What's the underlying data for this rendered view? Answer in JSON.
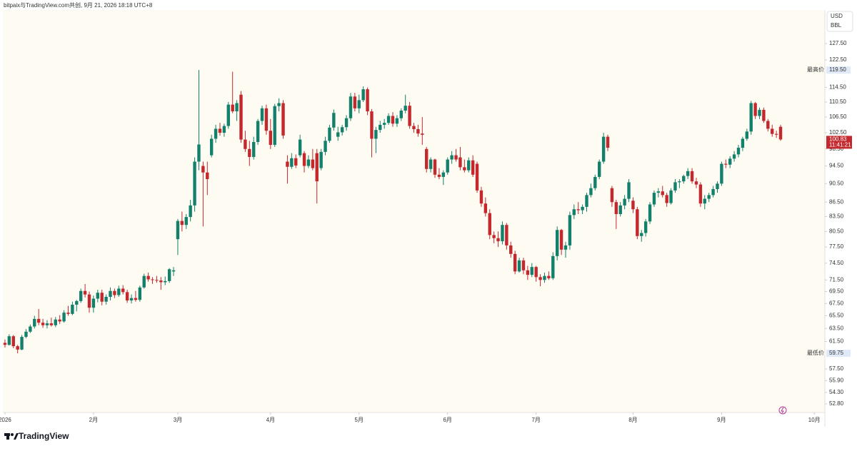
{
  "header": {
    "text": "bitpaix与TradingView.com共创, 9月 21, 2026 18:18 UTC+8"
  },
  "chart_data": {
    "type": "candlestick",
    "unit": "USD",
    "scale_label": "BBL",
    "log_scale": true,
    "up_color": "#13806c",
    "down_color": "#c4282d",
    "ylim": [
      51.7,
      138.4
    ],
    "yticks": [
      {
        "value": 127.5,
        "label": "127.50"
      },
      {
        "value": 122.5,
        "label": "122.50"
      },
      {
        "value": 114.5,
        "label": "114.50"
      },
      {
        "value": 110.5,
        "label": "110.50"
      },
      {
        "value": 106.5,
        "label": "106.50"
      },
      {
        "value": 102.5,
        "label": "102.50"
      },
      {
        "value": 98.5,
        "label": "98.50"
      },
      {
        "value": 94.5,
        "label": "94.50"
      },
      {
        "value": 90.5,
        "label": "90.50"
      },
      {
        "value": 86.5,
        "label": "86.50"
      },
      {
        "value": 83.5,
        "label": "83.50"
      },
      {
        "value": 80.5,
        "label": "80.50"
      },
      {
        "value": 77.5,
        "label": "77.50"
      },
      {
        "value": 74.5,
        "label": "74.50"
      },
      {
        "value": 71.5,
        "label": "71.50"
      },
      {
        "value": 69.5,
        "label": "69.50"
      },
      {
        "value": 67.5,
        "label": "67.50"
      },
      {
        "value": 65.5,
        "label": "65.50"
      },
      {
        "value": 63.5,
        "label": "63.50"
      },
      {
        "value": 61.5,
        "label": "61.50"
      },
      {
        "value": 57.5,
        "label": "57.50"
      },
      {
        "value": 55.9,
        "label": "55.90"
      },
      {
        "value": 54.3,
        "label": "54.30"
      },
      {
        "value": 52.8,
        "label": "52.80"
      }
    ],
    "xlim": [
      -0.5,
      194.5
    ],
    "xticks": [
      {
        "value": 0,
        "label": "2026"
      },
      {
        "value": 21,
        "label": "2月"
      },
      {
        "value": 41,
        "label": "3月"
      },
      {
        "value": 63,
        "label": "4月"
      },
      {
        "value": 84,
        "label": "5月"
      },
      {
        "value": 105,
        "label": "6月"
      },
      {
        "value": 126,
        "label": "7月"
      },
      {
        "value": 149,
        "label": "8月"
      },
      {
        "value": 170,
        "label": "9月"
      },
      {
        "value": 192,
        "label": "10月"
      }
    ],
    "high_marker": {
      "label": "最高价",
      "value": 119.5,
      "value_label": "119.50"
    },
    "low_marker": {
      "label": "最低价",
      "value": 59.75
    },
    "last_price": {
      "value": 100.83,
      "countdown": "11:41:21"
    },
    "ohlc": [
      [
        61.3,
        61.8,
        60.6,
        61.0
      ],
      [
        61.0,
        62.6,
        60.9,
        62.3
      ],
      [
        62.3,
        62.5,
        60.5,
        60.8
      ],
      [
        60.8,
        61.0,
        59.75,
        60.3
      ],
      [
        60.3,
        62.5,
        60.2,
        62.2
      ],
      [
        62.2,
        63.4,
        62.0,
        63.0
      ],
      [
        63.0,
        64.1,
        62.8,
        63.8
      ],
      [
        63.8,
        65.5,
        63.5,
        65.0
      ],
      [
        65.0,
        66.6,
        64.0,
        64.4
      ],
      [
        64.4,
        65.0,
        63.6,
        64.0
      ],
      [
        64.0,
        64.8,
        63.5,
        64.3
      ],
      [
        64.3,
        65.2,
        63.8,
        64.0
      ],
      [
        64.0,
        65.3,
        63.7,
        64.9
      ],
      [
        64.9,
        65.6,
        64.2,
        64.6
      ],
      [
        64.6,
        66.4,
        64.4,
        66.0
      ],
      [
        66.0,
        67.1,
        65.5,
        65.8
      ],
      [
        65.8,
        67.8,
        65.6,
        67.3
      ],
      [
        67.3,
        68.1,
        66.2,
        67.9
      ],
      [
        67.9,
        70.0,
        67.6,
        69.6
      ],
      [
        69.6,
        70.8,
        68.5,
        69.0
      ],
      [
        69.0,
        69.5,
        66.0,
        66.8
      ],
      [
        66.8,
        68.8,
        66.0,
        68.3
      ],
      [
        68.3,
        69.8,
        67.7,
        69.3
      ],
      [
        69.3,
        69.8,
        67.2,
        67.8
      ],
      [
        67.8,
        69.0,
        67.3,
        68.6
      ],
      [
        68.6,
        70.2,
        68.0,
        69.6
      ],
      [
        69.6,
        70.0,
        68.4,
        68.9
      ],
      [
        68.9,
        70.5,
        68.6,
        70.0
      ],
      [
        70.0,
        70.6,
        69.0,
        69.4
      ],
      [
        69.4,
        69.8,
        67.6,
        68.0
      ],
      [
        68.0,
        69.0,
        67.5,
        68.4
      ],
      [
        68.4,
        69.6,
        67.8,
        68.1
      ],
      [
        68.1,
        70.5,
        67.8,
        70.2
      ],
      [
        70.2,
        72.6,
        70.0,
        72.2
      ],
      [
        72.2,
        72.8,
        71.2,
        71.6
      ],
      [
        71.6,
        72.0,
        70.8,
        71.5
      ],
      [
        71.5,
        72.2,
        71.0,
        71.4
      ],
      [
        71.4,
        72.0,
        69.8,
        71.1
      ],
      [
        71.1,
        72.1,
        70.6,
        71.3
      ],
      [
        71.3,
        73.6,
        71.0,
        73.4
      ],
      [
        73.0,
        73.8,
        72.2,
        73.2
      ],
      [
        79.0,
        83.0,
        76.0,
        82.6
      ],
      [
        82.6,
        84.5,
        80.5,
        81.8
      ],
      [
        81.8,
        84.0,
        81.0,
        83.4
      ],
      [
        83.4,
        87.0,
        82.5,
        85.8
      ],
      [
        85.8,
        96.5,
        84.5,
        95.5
      ],
      [
        95.5,
        119.5,
        93.5,
        99.6
      ],
      [
        94.5,
        95.5,
        81.5,
        93.0
      ],
      [
        93.0,
        95.5,
        88.0,
        91.5
      ],
      [
        97.0,
        102.0,
        96.5,
        101.0
      ],
      [
        101.0,
        104.5,
        100.0,
        103.5
      ],
      [
        103.5,
        105.0,
        101.8,
        102.5
      ],
      [
        102.5,
        104.8,
        101.5,
        104.2
      ],
      [
        104.2,
        110.5,
        103.5,
        109.8
      ],
      [
        109.8,
        119.0,
        107.5,
        108.0
      ],
      [
        108.0,
        111.0,
        105.5,
        110.2
      ],
      [
        112.5,
        113.5,
        100.0,
        100.8
      ],
      [
        100.8,
        103.0,
        97.8,
        98.5
      ],
      [
        98.5,
        100.5,
        94.5,
        96.6
      ],
      [
        96.6,
        101.5,
        96.0,
        100.2
      ],
      [
        100.2,
        106.0,
        99.5,
        105.5
      ],
      [
        105.5,
        109.5,
        104.5,
        108.8
      ],
      [
        108.8,
        109.8,
        102.0,
        103.0
      ],
      [
        103.0,
        106.0,
        98.5,
        99.5
      ],
      [
        99.5,
        110.0,
        99.0,
        109.4
      ],
      [
        109.4,
        111.5,
        108.0,
        110.2
      ],
      [
        110.2,
        111.0,
        101.0,
        101.8
      ],
      [
        95.5,
        97.0,
        90.5,
        94.3
      ],
      [
        94.3,
        97.5,
        93.8,
        96.3
      ],
      [
        96.3,
        97.2,
        94.0,
        94.6
      ],
      [
        97.0,
        102.0,
        96.5,
        100.8
      ],
      [
        97.5,
        98.0,
        93.0,
        94.5
      ],
      [
        94.5,
        97.0,
        94.0,
        96.0
      ],
      [
        96.0,
        98.5,
        93.5,
        94.0
      ],
      [
        97.5,
        98.5,
        86.2,
        91.0
      ],
      [
        94.0,
        98.5,
        93.5,
        97.8
      ],
      [
        97.8,
        101.5,
        97.0,
        100.5
      ],
      [
        100.5,
        104.5,
        100.0,
        103.8
      ],
      [
        103.8,
        108.5,
        103.0,
        107.6
      ],
      [
        101.5,
        104.0,
        100.5,
        102.6
      ],
      [
        102.6,
        104.5,
        101.8,
        103.9
      ],
      [
        103.9,
        107.0,
        103.0,
        106.2
      ],
      [
        106.2,
        113.0,
        105.5,
        112.0
      ],
      [
        112.0,
        113.0,
        108.0,
        108.8
      ],
      [
        108.8,
        112.5,
        107.5,
        111.0
      ],
      [
        111.0,
        114.8,
        110.5,
        114.0
      ],
      [
        114.0,
        114.5,
        107.0,
        108.0
      ],
      [
        108.0,
        108.6,
        96.5,
        101.0
      ],
      [
        101.0,
        104.0,
        97.5,
        103.2
      ],
      [
        103.2,
        105.5,
        102.5,
        104.5
      ],
      [
        104.5,
        106.0,
        103.5,
        105.0
      ],
      [
        105.0,
        107.5,
        104.5,
        106.8
      ],
      [
        106.8,
        107.8,
        104.0,
        104.8
      ],
      [
        104.8,
        107.0,
        104.0,
        106.2
      ],
      [
        106.2,
        108.8,
        105.5,
        108.2
      ],
      [
        108.2,
        112.5,
        107.5,
        109.5
      ],
      [
        109.5,
        110.5,
        103.5,
        104.2
      ],
      [
        104.2,
        105.0,
        102.5,
        103.4
      ],
      [
        103.4,
        104.5,
        101.5,
        102.3
      ],
      [
        102.3,
        106.5,
        99.5,
        102.0
      ],
      [
        98.5,
        99.0,
        93.0,
        93.8
      ],
      [
        93.8,
        96.5,
        93.0,
        96.0
      ],
      [
        96.0,
        96.2,
        91.8,
        92.5
      ],
      [
        92.5,
        94.0,
        91.5,
        92.0
      ],
      [
        92.0,
        93.5,
        90.2,
        93.0
      ],
      [
        93.0,
        96.5,
        92.5,
        96.0
      ],
      [
        96.0,
        98.0,
        95.0,
        97.0
      ],
      [
        97.0,
        98.5,
        95.5,
        96.0
      ],
      [
        96.5,
        99.0,
        93.5,
        94.2
      ],
      [
        94.2,
        96.0,
        93.0,
        93.5
      ],
      [
        93.5,
        96.5,
        93.0,
        95.8
      ],
      [
        95.8,
        97.0,
        92.0,
        92.5
      ],
      [
        95.0,
        95.5,
        88.5,
        89.0
      ],
      [
        89.0,
        89.8,
        85.5,
        86.2
      ],
      [
        86.2,
        87.5,
        83.5,
        84.2
      ],
      [
        84.2,
        85.0,
        79.0,
        79.8
      ],
      [
        79.8,
        80.5,
        78.2,
        79.2
      ],
      [
        79.2,
        80.5,
        77.5,
        78.6
      ],
      [
        78.6,
        82.5,
        78.0,
        81.8
      ],
      [
        81.8,
        82.2,
        77.0,
        77.8
      ],
      [
        77.8,
        78.5,
        75.5,
        76.2
      ],
      [
        76.2,
        76.8,
        72.5,
        73.0
      ],
      [
        73.0,
        75.5,
        72.8,
        75.0
      ],
      [
        75.0,
        75.5,
        72.5,
        73.2
      ],
      [
        73.2,
        74.0,
        71.5,
        72.4
      ],
      [
        72.4,
        74.5,
        72.0,
        73.8
      ],
      [
        73.8,
        74.0,
        71.2,
        72.0
      ],
      [
        72.0,
        72.5,
        70.4,
        71.5
      ],
      [
        71.5,
        72.8,
        71.0,
        72.2
      ],
      [
        72.2,
        73.0,
        71.5,
        71.8
      ],
      [
        71.8,
        76.5,
        71.5,
        75.8
      ],
      [
        75.8,
        81.5,
        75.0,
        80.8
      ],
      [
        80.8,
        81.0,
        76.0,
        77.0
      ],
      [
        77.0,
        78.5,
        75.5,
        77.8
      ],
      [
        77.8,
        84.5,
        77.0,
        83.8
      ],
      [
        83.8,
        86.0,
        83.0,
        85.0
      ],
      [
        85.0,
        86.5,
        84.0,
        84.8
      ],
      [
        84.8,
        86.0,
        84.0,
        85.5
      ],
      [
        85.5,
        88.5,
        84.5,
        88.0
      ],
      [
        88.0,
        90.5,
        87.5,
        89.5
      ],
      [
        89.5,
        92.5,
        89.0,
        92.0
      ],
      [
        92.0,
        96.0,
        91.5,
        95.5
      ],
      [
        95.5,
        102.5,
        95.0,
        101.5
      ],
      [
        101.5,
        102.0,
        98.0,
        98.8
      ],
      [
        89.5,
        90.0,
        85.5,
        86.5
      ],
      [
        86.5,
        87.0,
        81.0,
        84.0
      ],
      [
        84.0,
        86.5,
        83.5,
        85.8
      ],
      [
        85.8,
        88.0,
        85.0,
        87.2
      ],
      [
        87.2,
        91.5,
        86.5,
        90.8
      ],
      [
        86.8,
        87.5,
        84.2,
        85.0
      ],
      [
        85.0,
        85.5,
        79.0,
        79.6
      ],
      [
        79.6,
        80.8,
        78.5,
        80.2
      ],
      [
        80.2,
        83.0,
        79.5,
        82.5
      ],
      [
        82.5,
        86.5,
        82.0,
        86.0
      ],
      [
        86.0,
        89.0,
        85.5,
        88.5
      ],
      [
        88.5,
        89.5,
        87.5,
        88.8
      ],
      [
        88.8,
        90.0,
        87.5,
        88.0
      ],
      [
        88.0,
        88.5,
        85.5,
        86.3
      ],
      [
        86.3,
        89.5,
        86.0,
        89.0
      ],
      [
        89.0,
        91.5,
        88.5,
        90.8
      ],
      [
        90.8,
        91.5,
        89.5,
        91.0
      ],
      [
        91.0,
        92.5,
        90.5,
        92.2
      ],
      [
        92.2,
        94.0,
        91.5,
        93.3
      ],
      [
        93.3,
        94.0,
        90.5,
        91.0
      ],
      [
        91.0,
        91.8,
        89.5,
        90.3
      ],
      [
        90.3,
        90.8,
        85.5,
        86.2
      ],
      [
        86.2,
        88.0,
        85.0,
        87.2
      ],
      [
        87.2,
        88.5,
        86.5,
        88.0
      ],
      [
        88.0,
        90.0,
        87.5,
        89.3
      ],
      [
        89.3,
        91.0,
        88.5,
        90.5
      ],
      [
        90.5,
        95.5,
        90.0,
        95.0
      ],
      [
        95.0,
        96.0,
        94.0,
        94.8
      ],
      [
        94.8,
        96.8,
        94.0,
        96.2
      ],
      [
        96.2,
        98.0,
        95.5,
        97.2
      ],
      [
        97.2,
        99.5,
        96.5,
        98.8
      ],
      [
        98.8,
        101.5,
        98.0,
        101.0
      ],
      [
        101.0,
        103.5,
        100.5,
        102.8
      ],
      [
        102.8,
        110.8,
        102.0,
        110.2
      ],
      [
        110.2,
        110.5,
        106.0,
        106.8
      ],
      [
        106.8,
        109.0,
        106.0,
        108.4
      ],
      [
        108.4,
        109.0,
        105.0,
        105.5
      ],
      [
        105.5,
        106.0,
        102.8,
        103.5
      ],
      [
        103.5,
        104.5,
        101.5,
        102.2
      ],
      [
        102.2,
        103.0,
        101.2,
        102.0
      ],
      [
        104.0,
        104.5,
        100.5,
        100.83
      ]
    ]
  },
  "footer": {
    "logo": "TradingView"
  }
}
